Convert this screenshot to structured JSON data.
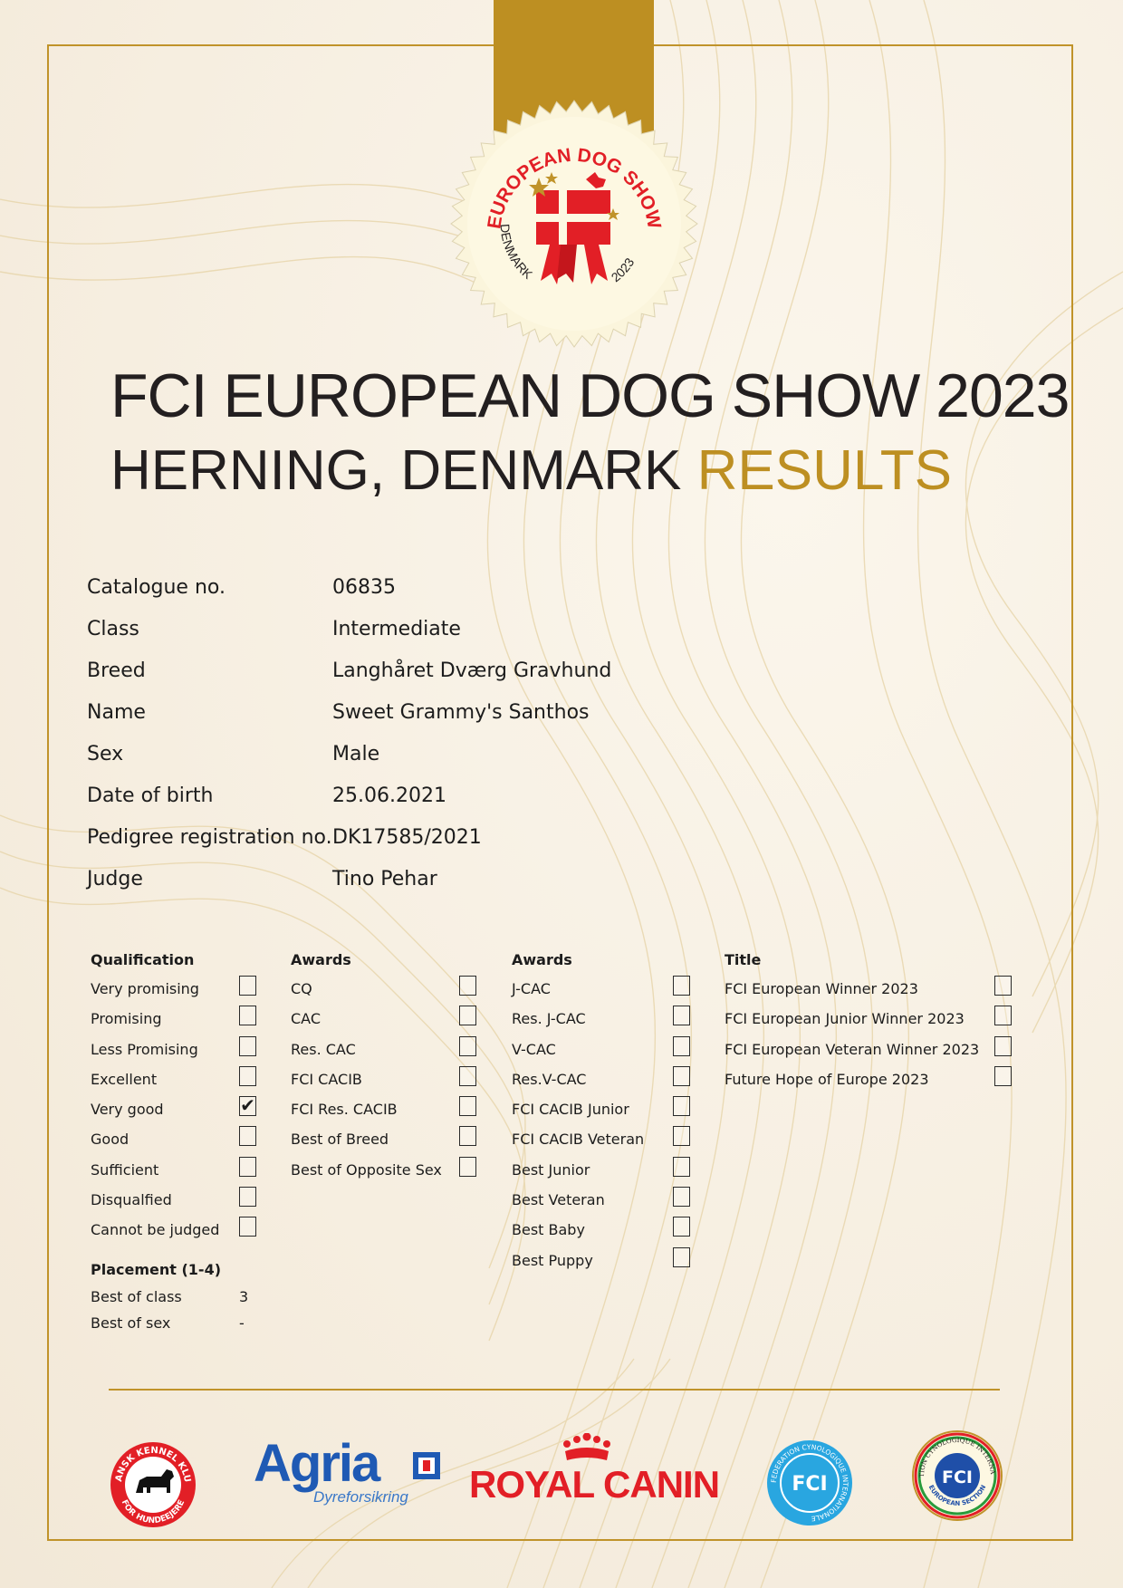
{
  "seal": {
    "arc_text": "EUROPEAN DOG SHOW",
    "country": "DENMARK",
    "year": "2023"
  },
  "header": {
    "title_line1": "FCI EUROPEAN DOG SHOW 2023",
    "title_line2_plain": "HERNING, DENMARK ",
    "title_line2_highlight": "RESULTS"
  },
  "details": [
    {
      "label": "Catalogue no.",
      "value": "06835"
    },
    {
      "label": "Class",
      "value": "Intermediate"
    },
    {
      "label": "Breed",
      "value": "Langhåret Dværg Gravhund"
    },
    {
      "label": "Name",
      "value": "Sweet Grammy's Santhos"
    },
    {
      "label": "Sex",
      "value": "Male"
    },
    {
      "label": "Date of birth",
      "value": "25.06.2021"
    },
    {
      "label": "Pedigree registration no.",
      "value": "DK17585/2021"
    },
    {
      "label": "Judge",
      "value": "Tino Pehar"
    }
  ],
  "columns": {
    "qualification": {
      "heading": "Qualification",
      "items": [
        {
          "label": "Very promising",
          "checked": false
        },
        {
          "label": "Promising",
          "checked": false
        },
        {
          "label": "Less Promising",
          "checked": false
        },
        {
          "label": "Excellent",
          "checked": false
        },
        {
          "label": "Very good",
          "checked": true
        },
        {
          "label": "Good",
          "checked": false
        },
        {
          "label": "Sufficient",
          "checked": false
        },
        {
          "label": "Disqualfied",
          "checked": false
        },
        {
          "label": "Cannot be judged",
          "checked": false
        }
      ]
    },
    "awards1": {
      "heading": "Awards",
      "items": [
        {
          "label": "CQ",
          "checked": false
        },
        {
          "label": "CAC",
          "checked": false
        },
        {
          "label": "Res. CAC",
          "checked": false
        },
        {
          "label": "FCI CACIB",
          "checked": false
        },
        {
          "label": "FCI Res. CACIB",
          "checked": false
        },
        {
          "label": "Best of Breed",
          "checked": false
        },
        {
          "label": "Best of Opposite Sex",
          "checked": false
        }
      ]
    },
    "awards2": {
      "heading": "Awards",
      "items": [
        {
          "label": "J-CAC",
          "checked": false
        },
        {
          "label": "Res. J-CAC",
          "checked": false
        },
        {
          "label": "V-CAC",
          "checked": false
        },
        {
          "label": "Res.V-CAC",
          "checked": false
        },
        {
          "label": "FCI CACIB Junior",
          "checked": false
        },
        {
          "label": "FCI CACIB Veteran",
          "checked": false
        },
        {
          "label": "Best Junior",
          "checked": false
        },
        {
          "label": "Best Veteran",
          "checked": false
        },
        {
          "label": "Best Baby",
          "checked": false
        },
        {
          "label": "Best Puppy",
          "checked": false
        }
      ]
    },
    "title": {
      "heading": "Title",
      "items": [
        {
          "label": "FCI European Winner 2023",
          "checked": false
        },
        {
          "label": "FCI European Junior Winner 2023",
          "checked": false
        },
        {
          "label": "FCI European Veteran Winner 2023",
          "checked": false
        },
        {
          "label": "Future Hope of Europe 2023",
          "checked": false
        }
      ]
    }
  },
  "check_mark": "✔",
  "placement": {
    "heading": "Placement (1-4)",
    "items": [
      {
        "label": "Best of class",
        "value": "3"
      },
      {
        "label": "Best of sex",
        "value": "-"
      }
    ]
  },
  "sponsors": {
    "dkk": {
      "top_text": "DANSK KENNEL KLUB",
      "bottom_text": "FOR HUNDEEJERE"
    },
    "agria": {
      "name": "Agria",
      "tagline": "Dyreforsikring"
    },
    "royal_canin": {
      "name": "ROYAL CANIN"
    },
    "fci": {
      "abbr": "FCI",
      "ring_text": "FEDERATION CYNOLOGIQUE INTERNATIONALE"
    },
    "fci_europe": {
      "abbr": "FCI",
      "ring_text": "FEDERATION CYNOLOGIQUE INTERNATIONALE",
      "bottom_text": "EUROPEAN SECTION"
    }
  },
  "colors": {
    "gold": "#bd8f22",
    "red": "#e21f26",
    "blue": "#1f5ab4",
    "light_blue": "#29a6e0"
  }
}
